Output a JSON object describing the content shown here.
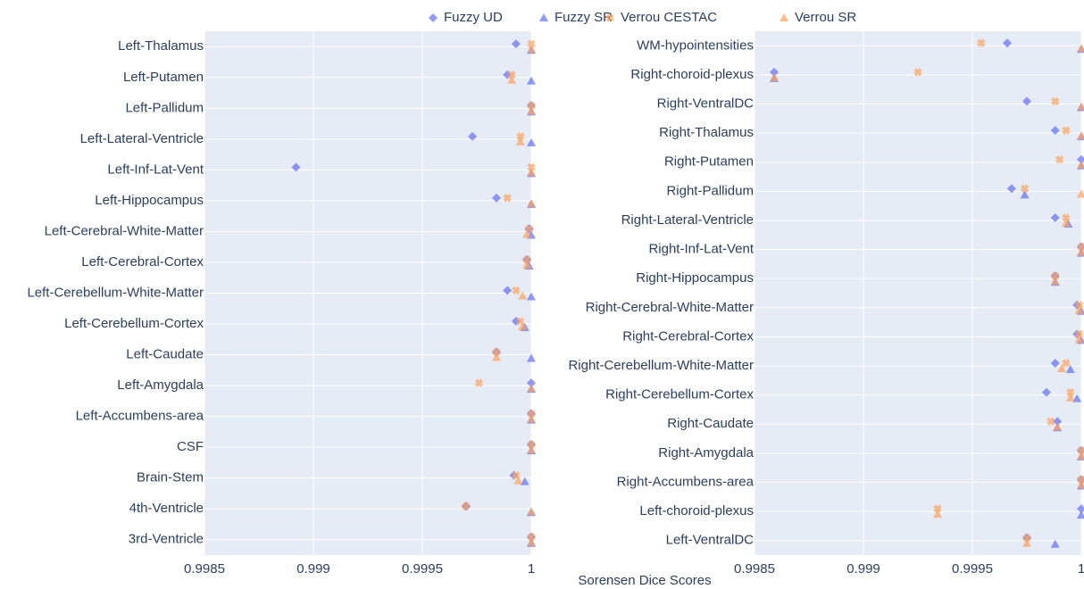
{
  "chart_data": [
    {
      "type": "scatter",
      "xlabel": "Sorensen Dice Scores",
      "categories": [
        "Left-Thalamus",
        "Left-Putamen",
        "Left-Pallidum",
        "Left-Lateral-Ventricle",
        "Left-Inf-Lat-Vent",
        "Left-Hippocampus",
        "Left-Cerebral-White-Matter",
        "Left-Cerebral-Cortex",
        "Left-Cerebellum-White-Matter",
        "Left-Cerebellum-Cortex",
        "Left-Caudate",
        "Left-Amygdala",
        "Left-Accumbens-area",
        "CSF",
        "Brain-Stem",
        "4th-Ventricle",
        "3rd-Ventricle"
      ],
      "series": [
        {
          "name": "Fuzzy UD",
          "color": "#636efa",
          "marker": "diamond",
          "values": [
            0.99993,
            0.99989,
            1,
            0.99973,
            0.99892,
            0.99984,
            0.99999,
            0.99998,
            0.99989,
            0.99993,
            0.99984,
            1,
            1,
            1,
            0.99992,
            0.9997,
            1
          ]
        },
        {
          "name": "Fuzzy SR",
          "color": "#636efa",
          "marker": "triangle",
          "values": [
            1,
            1,
            1,
            1,
            1,
            1,
            1,
            0.99999,
            1,
            0.99997,
            1,
            1,
            1,
            1,
            0.99997,
            1,
            1
          ]
        },
        {
          "name": "Verrou CESTAC",
          "color": "#ffa15a",
          "marker": "x",
          "values": [
            1,
            0.99991,
            1,
            0.99995,
            1,
            0.99989,
            0.99999,
            0.99998,
            0.99993,
            0.99995,
            0.99984,
            0.99976,
            1,
            1,
            0.99993,
            0.9997,
            1
          ]
        },
        {
          "name": "Verrou SR",
          "color": "#ffa15a",
          "marker": "triangle",
          "values": [
            1,
            0.99991,
            1,
            0.99995,
            1,
            1,
            0.99998,
            0.99998,
            0.99996,
            0.99996,
            0.99984,
            1,
            1,
            1,
            0.99994,
            1,
            1
          ]
        }
      ],
      "xlim": [
        0.9985,
        1
      ],
      "xticks": [
        0.9985,
        0.999,
        0.9995,
        1
      ],
      "grid": true
    },
    {
      "type": "scatter",
      "categories": [
        "WM-hypointensities",
        "Right-choroid-plexus",
        "Right-VentralDC",
        "Right-Thalamus",
        "Right-Putamen",
        "Right-Pallidum",
        "Right-Lateral-Ventricle",
        "Right-Inf-Lat-Vent",
        "Right-Hippocampus",
        "Right-Cerebral-White-Matter",
        "Right-Cerebral-Cortex",
        "Right-Cerebellum-White-Matter",
        "Right-Cerebellum-Cortex",
        "Right-Caudate",
        "Right-Amygdala",
        "Right-Accumbens-area",
        "Left-choroid-plexus",
        "Left-VentralDC"
      ],
      "series": [
        {
          "name": "Fuzzy UD",
          "color": "#636efa",
          "marker": "diamond",
          "values": [
            0.99966,
            0.99859,
            0.99975,
            0.99988,
            1,
            0.99968,
            0.99988,
            1,
            0.99988,
            0.99998,
            0.99998,
            0.99988,
            0.99984,
            0.99989,
            1,
            1,
            1,
            0.99975
          ]
        },
        {
          "name": "Fuzzy SR",
          "color": "#636efa",
          "marker": "triangle",
          "values": [
            1,
            0.99859,
            1,
            1,
            1,
            0.99974,
            0.99994,
            1,
            0.99988,
            1,
            1,
            0.99995,
            0.99998,
            0.99989,
            1,
            1,
            1,
            0.99988
          ]
        },
        {
          "name": "Verrou CESTAC",
          "color": "#ffa15a",
          "marker": "x",
          "values": [
            0.99954,
            0.99925,
            0.99988,
            0.99993,
            0.9999,
            0.99974,
            0.99993,
            1,
            0.99988,
            0.99999,
            0.99999,
            0.99993,
            0.99995,
            0.99986,
            1,
            1,
            0.99934,
            0.99975
          ]
        },
        {
          "name": "Verrou SR",
          "color": "#ffa15a",
          "marker": "triangle",
          "values": [
            1,
            0.99859,
            1,
            1,
            1,
            1,
            0.99993,
            1,
            0.99988,
            0.99999,
            0.99999,
            0.99991,
            0.99995,
            0.99989,
            1,
            1,
            0.99934,
            0.99975
          ]
        }
      ],
      "xlim": [
        0.9985,
        1
      ],
      "xticks": [
        0.9985,
        0.999,
        0.9995,
        1
      ],
      "grid": true
    }
  ]
}
